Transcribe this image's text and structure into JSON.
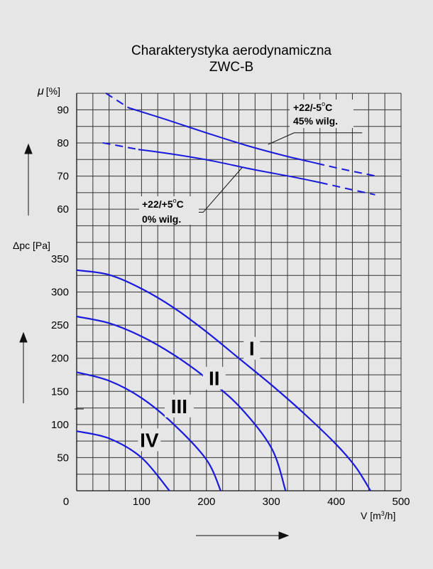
{
  "chart_data": {
    "type": "line",
    "title": "Charakterystyka aerodynamiczna",
    "subtitle": "ZWC-B",
    "x": {
      "label_prefix": "V [m",
      "label_sup": "3",
      "label_suffix": "/h]",
      "range": [
        0,
        500
      ],
      "ticks": [
        "0",
        "100",
        "200",
        "300",
        "400",
        "500"
      ]
    },
    "mu_axis": {
      "label_symbol": "μ",
      "label_unit": "[%]",
      "range": [
        55,
        95
      ],
      "ticks": [
        "60",
        "70",
        "80",
        "90"
      ]
    },
    "dp_axis": {
      "label": "Δpc [Pa]",
      "range": [
        0,
        350
      ],
      "ticks": [
        "50",
        "100",
        "150",
        "200",
        "250",
        "300",
        "350"
      ]
    },
    "grid": true,
    "efficiency_series": [
      {
        "annotation_line1_main": "+22/-5",
        "annotation_line1_sup": "o",
        "annotation_line1_tail": "C",
        "annotation_line2": "45% wilg.",
        "solid": [
          [
            80,
            90.6
          ],
          [
            140,
            86.9
          ],
          [
            200,
            83.0
          ],
          [
            260,
            79.3
          ],
          [
            320,
            76.1
          ],
          [
            370,
            73.8
          ]
        ],
        "dashed_start": [
          [
            45,
            95.0
          ],
          [
            80,
            90.6
          ]
        ],
        "dashed_end": [
          [
            370,
            73.8
          ],
          [
            410,
            72.0
          ],
          [
            460,
            70.0
          ]
        ],
        "pointer": [
          [
            295,
            79.5
          ],
          [
            335,
            83.0
          ],
          [
            440,
            83.0
          ]
        ]
      },
      {
        "annotation_line1_main": "+22/+5",
        "annotation_line1_sup": "o",
        "annotation_line1_tail": "C",
        "annotation_line2": "0% wilg.",
        "solid": [
          [
            95,
            78.0
          ],
          [
            150,
            76.5
          ],
          [
            210,
            74.5
          ],
          [
            270,
            72.0
          ],
          [
            330,
            69.8
          ],
          [
            375,
            68.0
          ]
        ],
        "dashed_start": [
          [
            40,
            80.0
          ],
          [
            95,
            78.0
          ]
        ],
        "dashed_end": [
          [
            375,
            68.0
          ],
          [
            420,
            66.0
          ],
          [
            460,
            64.3
          ]
        ],
        "pointer": [
          [
            255,
            72.5
          ],
          [
            195,
            59.0
          ],
          [
            100,
            59.0
          ]
        ]
      }
    ],
    "pressure_series": [
      {
        "name": "I",
        "points": [
          [
            0,
            333
          ],
          [
            50,
            326
          ],
          [
            100,
            305
          ],
          [
            150,
            276
          ],
          [
            200,
            240
          ],
          [
            250,
            200
          ],
          [
            300,
            160
          ],
          [
            350,
            117
          ],
          [
            400,
            70
          ],
          [
            430,
            36
          ],
          [
            453,
            0
          ]
        ]
      },
      {
        "name": "II",
        "points": [
          [
            0,
            263
          ],
          [
            50,
            253
          ],
          [
            100,
            233
          ],
          [
            150,
            205
          ],
          [
            200,
            170
          ],
          [
            250,
            128
          ],
          [
            300,
            65
          ],
          [
            322,
            0
          ]
        ]
      },
      {
        "name": "III",
        "points": [
          [
            0,
            179
          ],
          [
            50,
            166
          ],
          [
            100,
            140
          ],
          [
            150,
            100
          ],
          [
            200,
            47
          ],
          [
            222,
            0
          ]
        ]
      },
      {
        "name": "IV",
        "points": [
          [
            0,
            90
          ],
          [
            50,
            79
          ],
          [
            100,
            50
          ],
          [
            143,
            0
          ]
        ]
      }
    ],
    "colors": {
      "curve": "#1a1adc",
      "grid": "#333333",
      "background": "#e6e6e6"
    }
  }
}
